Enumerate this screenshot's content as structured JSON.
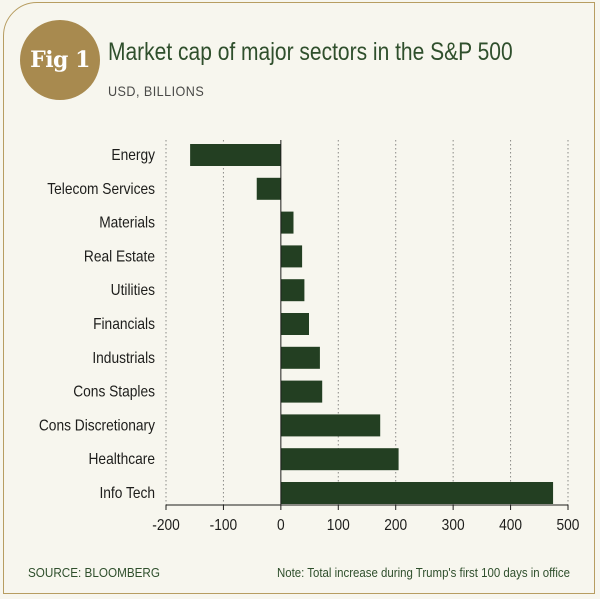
{
  "header": {
    "badge": "Fig 1",
    "title": "Market cap of major sectors in the S&P 500",
    "subtitle": "USD, BILLIONS"
  },
  "footer": {
    "source": "SOURCE: BLOOMBERG",
    "note": "Note: Total increase during Trump's first 100 days in office"
  },
  "colors": {
    "bar": "#233f22",
    "accent": "#a88a4f"
  },
  "chart_data": {
    "type": "bar",
    "orientation": "horizontal",
    "categories": [
      "Energy",
      "Telecom Services",
      "Materials",
      "Real Estate",
      "Utilities",
      "Financials",
      "Industrials",
      "Cons Staples",
      "Cons Discretionary",
      "Healthcare",
      "Info Tech"
    ],
    "values": [
      -158,
      -42,
      22,
      37,
      41,
      49,
      68,
      72,
      173,
      205,
      474
    ],
    "xlim": [
      -200,
      500
    ],
    "xticks": [
      "-200",
      "-100",
      "0",
      "100",
      "200",
      "300",
      "400",
      "500"
    ],
    "grid": true
  }
}
